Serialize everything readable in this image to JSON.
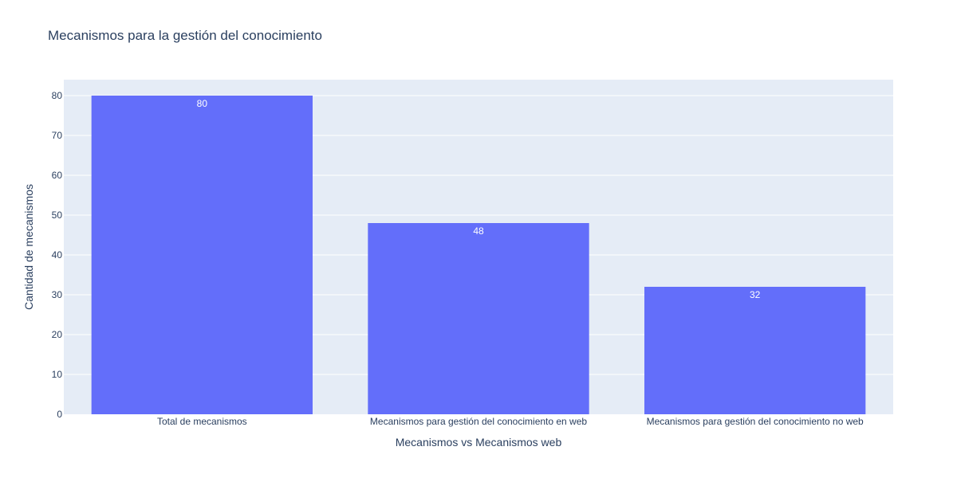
{
  "chart_data": {
    "type": "bar",
    "title": "Mecanismos para la gestión del conocimiento",
    "xlabel": "Mecanismos vs Mecanismos web",
    "ylabel": "Cantidad de mecanismos",
    "categories": [
      "Total de mecanismos",
      "Mecanismos para gestión del conocimiento en web",
      "Mecanismos para gestión del conocimiento no web"
    ],
    "values": [
      80,
      48,
      32
    ],
    "data_labels": [
      "80",
      "48",
      "32"
    ],
    "ylim": [
      0,
      84
    ],
    "yticks": [
      0,
      10,
      20,
      30,
      40,
      50,
      60,
      70,
      80
    ],
    "grid": true,
    "legend": "none",
    "colors": {
      "bar": "#636efa",
      "plot_bg": "#e5ecf6",
      "grid": "#ffffff",
      "text": "#2a3f5f"
    }
  }
}
